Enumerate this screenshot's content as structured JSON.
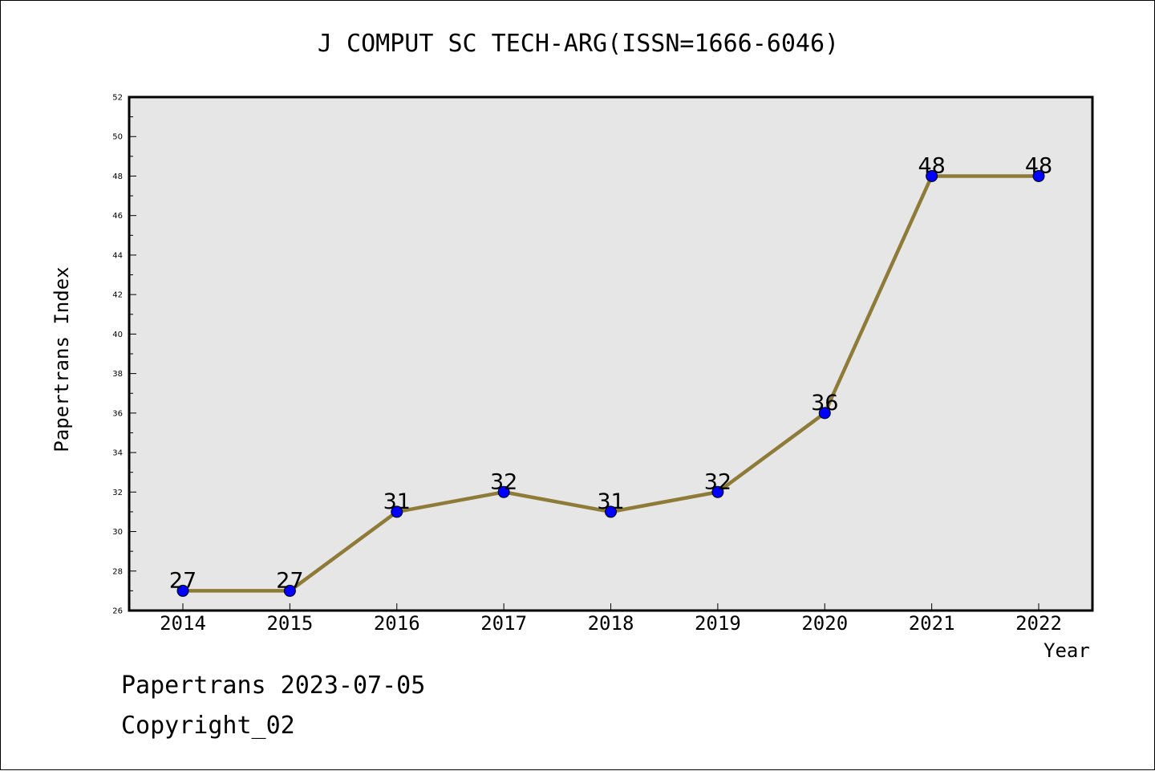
{
  "chart_data": {
    "type": "line",
    "title": "J COMPUT SC TECH-ARG(ISSN=1666-6046)",
    "xlabel": "Year",
    "ylabel": "Papertrans Index",
    "categories": [
      "2014",
      "2015",
      "2016",
      "2017",
      "2018",
      "2019",
      "2020",
      "2021",
      "2022"
    ],
    "values": [
      27,
      27,
      31,
      32,
      31,
      32,
      36,
      48,
      48
    ],
    "data_labels": [
      "27",
      "27",
      "31",
      "32",
      "31",
      "32",
      "36",
      "48",
      "48"
    ],
    "ylim": [
      26,
      52
    ],
    "y_ticks": [
      "26",
      "28",
      "30",
      "32",
      "34",
      "36",
      "38",
      "40",
      "42",
      "44",
      "46",
      "48",
      "50",
      "52"
    ],
    "grid": false,
    "colors": {
      "line": "#8e7b38",
      "marker": "#0000ff",
      "plot_background": "#e6e6e6"
    }
  },
  "footer": {
    "date_text": "Papertrans 2023-07-05",
    "copyright_text": "Copyright_02"
  }
}
